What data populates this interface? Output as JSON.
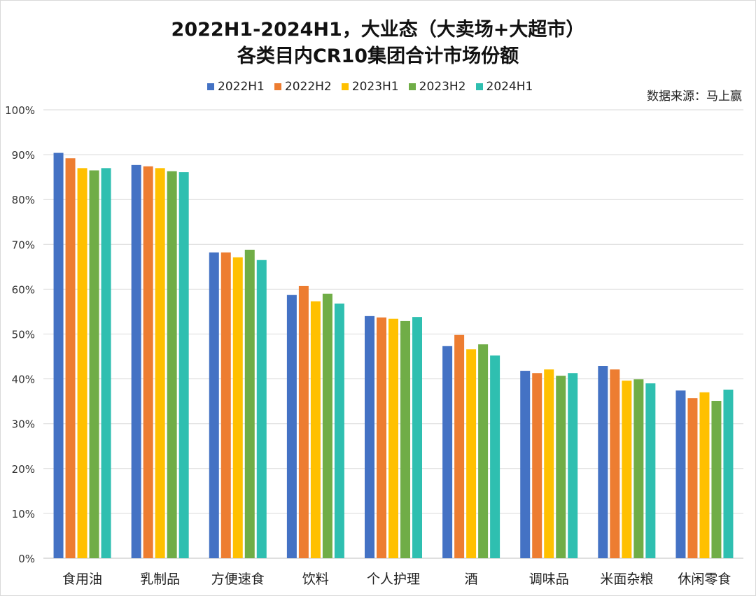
{
  "chart_data": {
    "type": "bar",
    "title": [
      "2022H1-2024H1，大业态（大卖场+大超市）",
      "各类目内CR10集团合计市场份额"
    ],
    "source": "数据来源：马上赢",
    "xlabel": "",
    "ylabel": "",
    "ylim": [
      0,
      100
    ],
    "yticks": [
      "0%",
      "10%",
      "20%",
      "30%",
      "40%",
      "50%",
      "60%",
      "70%",
      "80%",
      "90%",
      "100%"
    ],
    "grid": true,
    "legend_position": "top",
    "categories": [
      "食用油",
      "乳制品",
      "方便速食",
      "饮料",
      "个人护理",
      "酒",
      "调味品",
      "米面杂粮",
      "休闲零食"
    ],
    "series": [
      {
        "name": "2022H1",
        "color": "#4472c4",
        "values": [
          90.4,
          87.7,
          68.2,
          58.7,
          54.0,
          47.3,
          41.8,
          42.9,
          37.4
        ]
      },
      {
        "name": "2022H2",
        "color": "#ed7d31",
        "values": [
          89.2,
          87.4,
          68.2,
          60.7,
          53.7,
          49.8,
          41.3,
          42.1,
          35.7
        ]
      },
      {
        "name": "2023H1",
        "color": "#ffc000",
        "values": [
          87.0,
          87.0,
          67.1,
          57.3,
          53.4,
          46.6,
          42.1,
          39.6,
          37.0
        ]
      },
      {
        "name": "2023H2",
        "color": "#70ad47",
        "values": [
          86.5,
          86.3,
          68.8,
          59.0,
          52.9,
          47.7,
          40.7,
          39.9,
          35.1
        ]
      },
      {
        "name": "2024H1",
        "color": "#2fbfb0",
        "values": [
          87.0,
          86.1,
          66.5,
          56.8,
          53.8,
          45.2,
          41.3,
          39.0,
          37.6
        ]
      }
    ]
  }
}
